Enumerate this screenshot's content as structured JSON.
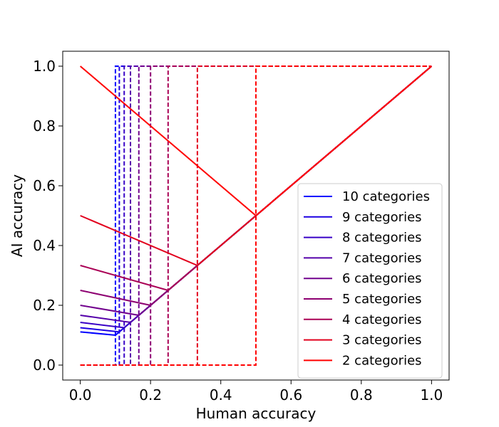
{
  "chart_data": {
    "type": "line",
    "title": "",
    "xlabel": "Human accuracy",
    "ylabel": "AI accuracy",
    "xlim": [
      -0.05,
      1.05
    ],
    "ylim": [
      -0.05,
      1.05
    ],
    "xticks": [
      0.0,
      0.2,
      0.4,
      0.6,
      0.8,
      1.0
    ],
    "yticks": [
      0.0,
      0.2,
      0.4,
      0.6,
      0.8,
      1.0
    ],
    "xtick_labels": [
      "0.0",
      "0.2",
      "0.4",
      "0.6",
      "0.8",
      "1.0"
    ],
    "ytick_labels": [
      "0.0",
      "0.2",
      "0.4",
      "0.6",
      "0.8",
      "1.0"
    ],
    "grid": false,
    "legend_position": "lower-right",
    "series": [
      {
        "name": "10 categories",
        "color": "#0000ff",
        "categories": 10
      },
      {
        "name": "9 categories",
        "color": "#1c00e2",
        "categories": 9
      },
      {
        "name": "8 categories",
        "color": "#3800c6",
        "categories": 8
      },
      {
        "name": "7 categories",
        "color": "#5500aa",
        "categories": 7
      },
      {
        "name": "6 categories",
        "color": "#71008d",
        "categories": 6
      },
      {
        "name": "5 categories",
        "color": "#8d0071",
        "categories": 5
      },
      {
        "name": "4 categories",
        "color": "#aa0055",
        "categories": 4
      },
      {
        "name": "3 categories",
        "color": "#e2001c",
        "categories": 3
      },
      {
        "name": "2 categories",
        "color": "#ff0000",
        "categories": 2
      }
    ],
    "solid_lines": {
      "description_of_values": "for k categories: from (0, 1/(k-1)) to (1/k, 1/k), then along y = x to (1, 1)"
    },
    "dashed_lines": {
      "description_of_values": "for k categories: vertical at x = 1/k from 0 to 1, plus baseline y = 0 and top y = 1"
    }
  }
}
